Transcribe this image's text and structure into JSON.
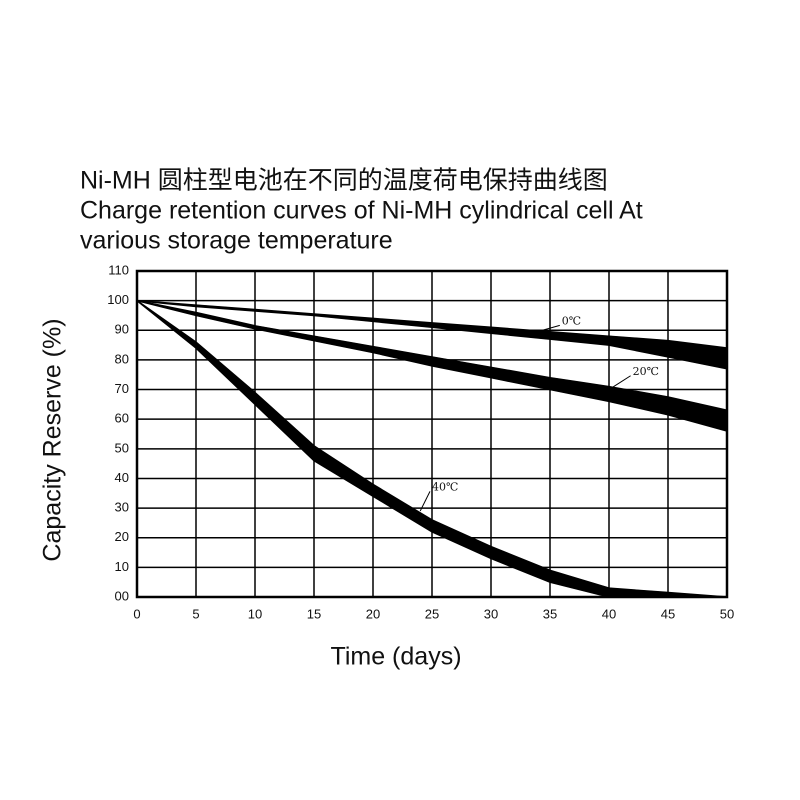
{
  "chart_data": {
    "type": "band",
    "title": "Ni-MH 圆柱型电池在不同的温度荷电保持曲线图",
    "subtitle": [
      "Charge retention curves of Ni-MH cylindrical cell At",
      "various storage temperature"
    ],
    "xlabel": "Time (days)",
    "ylabel": "Capacity Reserve (%)",
    "x": [
      0,
      5,
      10,
      15,
      20,
      25,
      30,
      35,
      40,
      45,
      50
    ],
    "series": [
      {
        "name": "0℃",
        "color": "#000000",
        "values": [
          100,
          98.5,
          97,
          95.5,
          94,
          92.5,
          91,
          89.5,
          88,
          86.5,
          84
        ],
        "lower": [
          100,
          98,
          96.5,
          95,
          93,
          91,
          89,
          87,
          85,
          81,
          77
        ]
      },
      {
        "name": "20℃",
        "color": "#000000",
        "values": [
          100,
          96,
          91.5,
          88,
          84.5,
          81,
          77.5,
          74,
          71,
          67.5,
          63
        ],
        "lower": [
          100,
          95,
          90.5,
          86.5,
          82.5,
          78,
          74,
          70,
          66,
          61.5,
          56
        ]
      },
      {
        "name": "40℃",
        "color": "#000000",
        "values": [
          100,
          86,
          69,
          51,
          38,
          26,
          17,
          9,
          3,
          1.5,
          0
        ],
        "lower": [
          100,
          84,
          65,
          46,
          34,
          22,
          13,
          5,
          0,
          0,
          0
        ]
      }
    ],
    "xlim": [
      0,
      50
    ],
    "xticks": [
      0,
      5,
      10,
      15,
      20,
      25,
      30,
      35,
      40,
      45,
      50
    ],
    "ylim": [
      0,
      110
    ],
    "yticks": [
      {
        "value": 0,
        "label": "00"
      },
      10,
      20,
      30,
      40,
      50,
      60,
      70,
      80,
      90,
      100,
      110
    ],
    "grid": true
  }
}
